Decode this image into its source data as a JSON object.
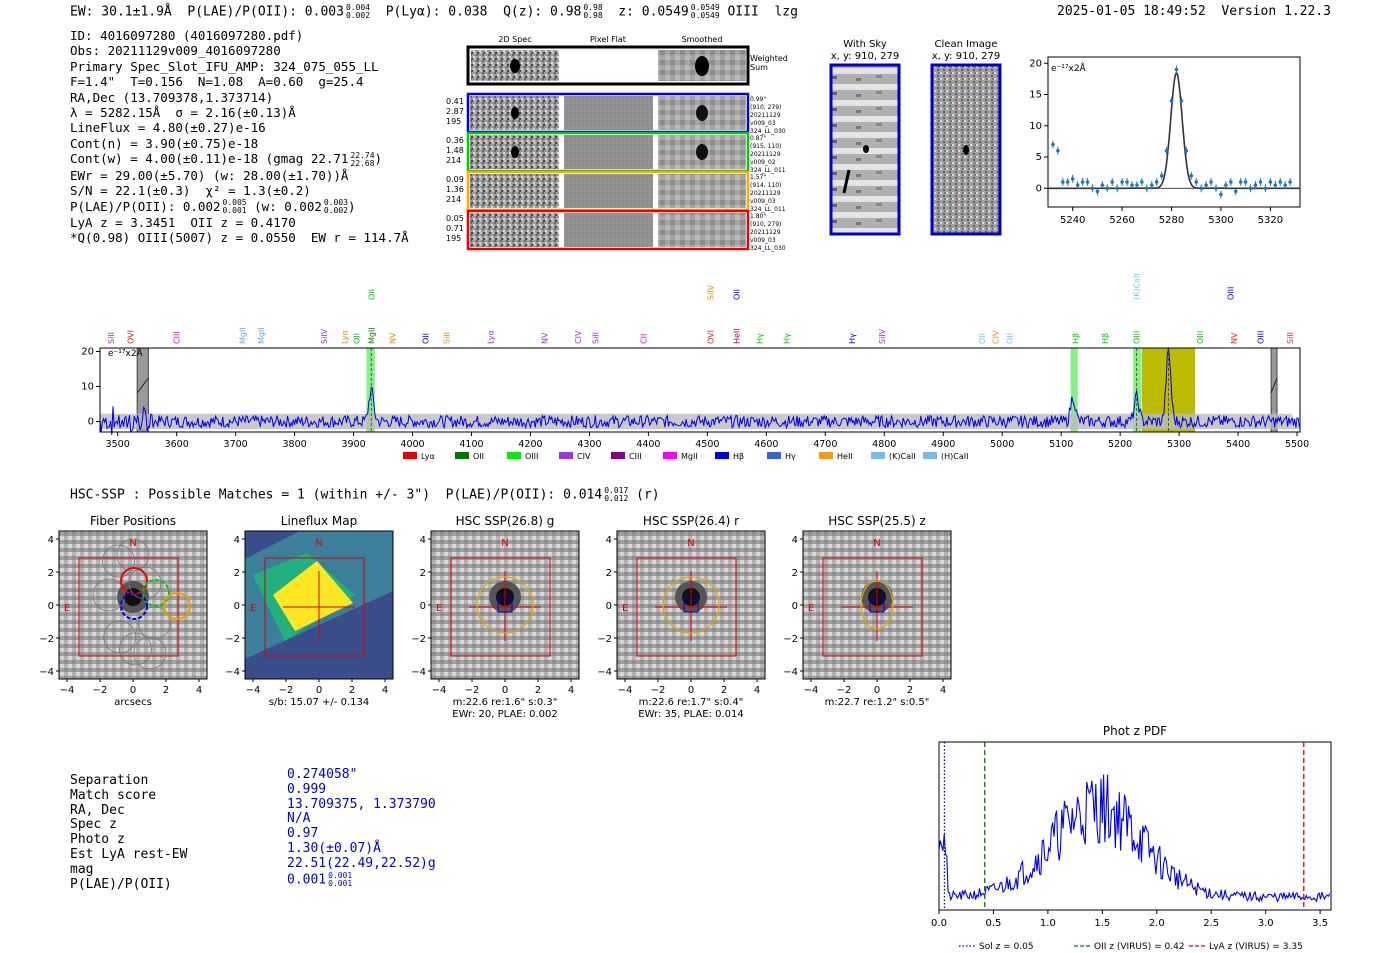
{
  "header": {
    "summary_line": "EW: 30.1±1.9Å  P(LAE)/P(OII): 0.003",
    "summary_frac": [
      "0.004",
      "0.002"
    ],
    "plya": "P(Lyα): 0.038",
    "qz": "Q(z): 0.98",
    "qz_frac": [
      "0.98",
      "0.98"
    ],
    "z": "z: 0.0549",
    "z_frac": [
      "0.0549",
      "0.0549"
    ],
    "line": "OIII",
    "flag": "lzg",
    "datetime": "2025-01-05 18:49:52",
    "version": "Version 1.22.3"
  },
  "info": {
    "id": "ID: 4016097280 (4016097280.pdf)",
    "obs": "Obs: 20211129v009_4016097280",
    "primary": "Primary Spec_Slot_IFU_AMP: 324_075_055_LL",
    "fiber": "F=1.4\"  T=0.156  N=1.08  A=0.60  g=25.4",
    "radec": "RA,Dec (13.709378,1.373714)",
    "lambda": "λ = 5282.15Å  σ = 2.16(±0.13)Å",
    "lineflux": "LineFlux = 4.80(±0.27)e-16",
    "contn": "Cont(n) = 3.90(±0.75)e-18",
    "contw": "Cont(w) = 4.00(±0.11)e-18 (gmag 22.71",
    "contw_frac": [
      "22.74",
      "22.68"
    ],
    "ewr": "EWr = 29.00(±5.70) (w: 28.00(±1.70))Å",
    "sn": "S/N = 22.1(±0.3)  χ² = 1.3(±0.2)",
    "plae": "P(LAE)/P(OII): 0.002",
    "plae_frac": [
      "0.005",
      "0.001"
    ],
    "plae_w": "(w: 0.002",
    "plae_w_frac": [
      "0.003",
      "0.002"
    ],
    "lya": "LyA z = 3.3451  OII z = 0.4170",
    "q": "*Q(0.98) OIII(5007) z = 0.0550  EW r = 114.7Å"
  },
  "spec2d": {
    "headers": [
      "2D Spec",
      "Pixel Flat",
      "Smoothed"
    ],
    "weighted": [
      "Weighted",
      "Sum"
    ],
    "rows": [
      {
        "nums": [
          "0.41",
          "2.87",
          "195"
        ],
        "meta": [
          "0.99\"",
          "(910, 279)",
          "20211129",
          "v009_03",
          "324_LL_030"
        ],
        "color": "#0000dd"
      },
      {
        "nums": [
          "0.36",
          "1.48",
          "214"
        ],
        "meta": [
          "0.87\"",
          "(915, 110)",
          "20211129",
          "v009_02",
          "324_LL_011"
        ],
        "color": "#00cc00"
      },
      {
        "nums": [
          "0.09",
          "1.36",
          "214"
        ],
        "meta": [
          "1.57\"",
          "(914, 110)",
          "20211129",
          "v009_03",
          "324_LL_011"
        ],
        "color": "#ffaa00"
      },
      {
        "nums": [
          "0.05",
          "0.71",
          "195"
        ],
        "meta": [
          "1.80\"",
          "(910, 279)",
          "20211129",
          "v009_03",
          "324_LL_030"
        ],
        "color": "#ee0000"
      }
    ]
  },
  "sky": {
    "with_sky": [
      "With Sky",
      "x, y: 910, 279"
    ],
    "clean": [
      "Clean Image",
      "x, y: 910, 279"
    ]
  },
  "hsc": {
    "line": "HSC-SSP : Possible Matches = 1 (within +/- 3\")  P(LAE)/P(OII): 0.014",
    "frac": [
      "0.017",
      "0.012"
    ],
    "band": "(r)"
  },
  "thumbs": [
    {
      "title": "Fiber Positions",
      "caption": [
        "arcsecs"
      ]
    },
    {
      "title": "Lineflux Map",
      "caption": [
        "s/b: 15.07 +/- 0.134"
      ]
    },
    {
      "title": "HSC SSP(26.8) g",
      "caption": [
        "m:22.6  re:1.6\"  s:0.3\"",
        "EWr: 20, PLAE: 0.002"
      ]
    },
    {
      "title": "HSC SSP(26.4) r",
      "caption": [
        "m:22.6  re:1.7\"  s:0.4\"",
        "EWr: 35, PLAE: 0.014"
      ]
    },
    {
      "title": "HSC SSP(25.5) z",
      "caption": [
        "m:22.7  re:1.2\"  s:0.5\""
      ]
    }
  ],
  "thumb_ticks": [
    "4",
    "2",
    "0",
    "−2",
    "−4"
  ],
  "thumb_xticks": [
    "−4",
    "−2",
    "0",
    "2",
    "4"
  ],
  "thumb_compass": [
    "N",
    "E"
  ],
  "match_table": {
    "labels": [
      "Separation",
      "Match score",
      "RA, Dec",
      "Spec z",
      "Photo z",
      "Est LyA rest-EW",
      "mag",
      "P(LAE)/P(OII)"
    ],
    "values": [
      "0.274058\"",
      "0.999",
      "13.709375, 1.373790",
      "N/A",
      "0.97",
      "1.30(±0.07)Å",
      "22.51(22.49,22.52)g",
      "0.001"
    ],
    "plae_frac": [
      "0.001",
      "0.001"
    ]
  },
  "chart_data": [
    {
      "type": "line",
      "title": "",
      "unit_label": "e⁻¹⁷x2Å",
      "xlim": [
        5230,
        5332
      ],
      "ylim": [
        -3,
        21
      ],
      "xticks": [
        5240,
        5260,
        5280,
        5300,
        5320
      ],
      "yticks": [
        0,
        5,
        10,
        15,
        20
      ],
      "points_x": [
        5232,
        5234,
        5236,
        5238,
        5240,
        5242,
        5244,
        5246,
        5248,
        5250,
        5252,
        5254,
        5256,
        5258,
        5260,
        5262,
        5264,
        5266,
        5268,
        5270,
        5272,
        5274,
        5276,
        5278,
        5280,
        5282,
        5284,
        5286,
        5288,
        5290,
        5292,
        5294,
        5296,
        5298,
        5300,
        5302,
        5304,
        5306,
        5308,
        5310,
        5312,
        5314,
        5316,
        5318,
        5320,
        5322,
        5324,
        5326,
        5328
      ],
      "points_y": [
        7,
        6,
        1,
        1,
        1.5,
        0.5,
        1,
        1,
        0,
        -0.5,
        0.5,
        0,
        1,
        0,
        1,
        1,
        0.5,
        0.5,
        1,
        0,
        0.5,
        1,
        2,
        6,
        14,
        19,
        14,
        6,
        2,
        1,
        0,
        0.5,
        1,
        0,
        -1,
        0.5,
        1,
        -0.5,
        1,
        1,
        0,
        0.5,
        1,
        0,
        1,
        0.5,
        1,
        0.5,
        1
      ],
      "fit_center": 5282,
      "fit_peak": 18.5,
      "fit_sigma": 2.3
    },
    {
      "type": "line",
      "unit_label": "e⁻¹⁷x2Å",
      "xlim": [
        3470,
        5505
      ],
      "ylim": [
        -3,
        21
      ],
      "xticks": [
        3500,
        3600,
        3700,
        3800,
        3900,
        4000,
        4100,
        4200,
        4300,
        4400,
        4500,
        4600,
        4700,
        4800,
        4900,
        5000,
        5100,
        5200,
        5300,
        5400,
        5500
      ],
      "yticks": [
        0,
        10,
        20
      ],
      "peaks": [
        {
          "x": 3930,
          "h": 9
        },
        {
          "x": 5120,
          "h": 7
        },
        {
          "x": 5228,
          "h": 7
        },
        {
          "x": 5282,
          "h": 20
        }
      ],
      "highlight_green": [
        [
          3922,
          3936
        ],
        [
          5116,
          5128
        ],
        [
          5222,
          5236
        ]
      ],
      "highlight_olive": [
        5237,
        5327
      ],
      "gray_bars": [
        [
          3533,
          3552
        ],
        [
          5456,
          5466
        ]
      ],
      "line_labels": [
        {
          "x": 3489,
          "t": "SiII",
          "c": "#9933cc"
        },
        {
          "x": 3522,
          "t": "OVI",
          "c": "#cc2222"
        },
        {
          "x": 3600,
          "t": "CIII",
          "c": "#cc00cc"
        },
        {
          "x": 3712,
          "t": "MgII",
          "c": "#66aaee"
        },
        {
          "x": 3743,
          "t": "MgII",
          "c": "#66aaee"
        },
        {
          "x": 3850,
          "t": "SiIV",
          "c": "#9933cc"
        },
        {
          "x": 3885,
          "t": "Lyα",
          "c": "#ee8800"
        },
        {
          "x": 3905,
          "t": "OII",
          "c": "#00cc00"
        },
        {
          "x": 3930,
          "t": "MgII",
          "c": "#008800"
        },
        {
          "x": 3966,
          "t": "NV",
          "c": "#ee8800"
        },
        {
          "x": 4022,
          "t": "OII",
          "c": "#0000cc"
        },
        {
          "x": 4058,
          "t": "SiII",
          "c": "#ee8800"
        },
        {
          "x": 4132,
          "t": "Lyα",
          "c": "#9933cc"
        },
        {
          "x": 4224,
          "t": "NV",
          "c": "#9933cc"
        },
        {
          "x": 4281,
          "t": "CIV",
          "c": "#9933cc"
        },
        {
          "x": 4310,
          "t": "SiII",
          "c": "#9933cc"
        },
        {
          "x": 4392,
          "t": "CII",
          "c": "#cc00cc"
        },
        {
          "x": 4505,
          "t": "OVI",
          "c": "#cc2222"
        },
        {
          "x": 4549,
          "t": "HeII",
          "c": "#aa0077"
        },
        {
          "x": 4588,
          "t": "Hγ",
          "c": "#00cc00"
        },
        {
          "x": 4634,
          "t": "Hγ",
          "c": "#00cc00"
        },
        {
          "x": 4745,
          "t": "Hγ",
          "c": "#0000cc"
        },
        {
          "x": 4796,
          "t": "SiIV",
          "c": "#9933cc"
        },
        {
          "x": 4966,
          "t": "OII",
          "c": "#66ccee"
        },
        {
          "x": 4989,
          "t": "CIV",
          "c": "#ee8800"
        },
        {
          "x": 5012,
          "t": "OII",
          "c": "#66ccee"
        },
        {
          "x": 5124,
          "t": "Hβ",
          "c": "#00cc00"
        },
        {
          "x": 5174,
          "t": "Hβ",
          "c": "#00cc00"
        },
        {
          "x": 5228,
          "t": "OIII",
          "c": "#00cc00"
        },
        {
          "x": 5335,
          "t": "OIII",
          "c": "#00cc00"
        },
        {
          "x": 5393,
          "t": "NV",
          "c": "#ee2222"
        },
        {
          "x": 5438,
          "t": "OIII",
          "c": "#0000cc"
        },
        {
          "x": 5488,
          "t": "SiII",
          "c": "#ee2222"
        }
      ],
      "upper_labels": [
        {
          "x": 3930,
          "t": "OII",
          "c": "#00cc00"
        },
        {
          "x": 4505,
          "t": "SiIV",
          "c": "#ee8800"
        },
        {
          "x": 4549,
          "t": "OII",
          "c": "#0000cc"
        },
        {
          "x": 5228,
          "t": "(K)CaII",
          "c": "#66ccee"
        },
        {
          "x": 5387,
          "t": "OIII",
          "c": "#0000cc"
        }
      ],
      "legend": [
        {
          "t": "Lyα",
          "c": "#ee0000"
        },
        {
          "t": "OII",
          "c": "#007700"
        },
        {
          "t": "OIII",
          "c": "#00ee00"
        },
        {
          "t": "CIV",
          "c": "#9933ee"
        },
        {
          "t": "CIII",
          "c": "#880088"
        },
        {
          "t": "MgII",
          "c": "#ff00ff"
        },
        {
          "t": "Hβ",
          "c": "#0000ee"
        },
        {
          "t": "Hγ",
          "c": "#3366dd"
        },
        {
          "t": "HeII",
          "c": "#ff9900"
        },
        {
          "t": "(K)CaII",
          "c": "#77bbee"
        },
        {
          "t": "(H)CaII",
          "c": "#77bbee"
        }
      ]
    },
    {
      "type": "line",
      "title": "Phot z PDF",
      "xlim": [
        0.0,
        3.6
      ],
      "xticks": [
        0.0,
        0.5,
        1.0,
        1.5,
        2.0,
        2.5,
        3.0,
        3.5
      ],
      "xticklabels": [
        "0.0",
        "0.5",
        "1.0",
        "1.5",
        "2.0",
        "2.5",
        "3.0",
        "3.5"
      ],
      "vlines": [
        {
          "x": 0.05,
          "label": "Sol z = 0.05",
          "c": "#0000cc",
          "style": "dotted"
        },
        {
          "x": 0.42,
          "label": "OII z (VIRUS) = 0.42",
          "c": "#007700",
          "style": "dashed"
        },
        {
          "x": 3.35,
          "label": "LyA z (VIRUS) = 3.35",
          "c": "#dd0000",
          "style": "dashed"
        }
      ]
    }
  ]
}
